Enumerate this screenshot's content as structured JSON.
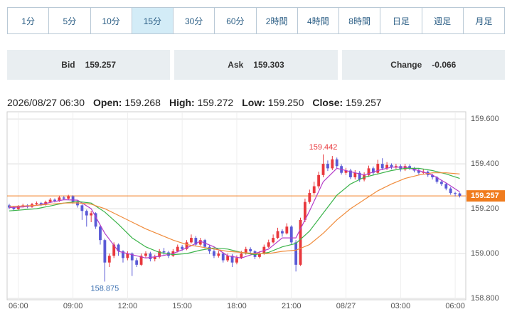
{
  "tabs": {
    "labels": [
      "1分",
      "5分",
      "10分",
      "15分",
      "30分",
      "60分",
      "2時間",
      "4時間",
      "8時間",
      "日足",
      "週足",
      "月足"
    ],
    "active": 3
  },
  "quote": [
    {
      "label": "Bid",
      "value": "159.257"
    },
    {
      "label": "Ask",
      "value": "159.303"
    },
    {
      "label": "Change",
      "value": "-0.066"
    }
  ],
  "ohlc": {
    "time": "2026/08/27 06:30",
    "items": [
      {
        "label": "Open:",
        "value": "159.268"
      },
      {
        "label": "High:",
        "value": "159.272"
      },
      {
        "label": "Low:",
        "value": "159.250"
      },
      {
        "label": "Close:",
        "value": "159.257"
      }
    ]
  },
  "chart_data": {
    "type": "candlestick",
    "up_color": "#e8383d",
    "down_color": "#5a5ad6",
    "last_color": "#f07c1e",
    "grid": true,
    "xlim": [
      -0.47,
      100.33
    ],
    "xticks": [
      {
        "value": 2,
        "label": "06:00"
      },
      {
        "value": 14,
        "label": "09:00"
      },
      {
        "value": 26,
        "label": "12:00"
      },
      {
        "value": 38,
        "label": "15:00"
      },
      {
        "value": 50,
        "label": "18:00"
      },
      {
        "value": 62,
        "label": "21:00"
      },
      {
        "value": 74,
        "label": "08/27"
      },
      {
        "value": 86,
        "label": "03:00"
      },
      {
        "value": 98,
        "label": "06:00"
      }
    ],
    "ylim": [
      158.794,
      159.632
    ],
    "yticks": [
      {
        "value": 158.8,
        "label": "158.800"
      },
      {
        "value": 159.0,
        "label": "159.000"
      },
      {
        "value": 159.2,
        "label": "159.200"
      },
      {
        "value": 159.4,
        "label": "159.400"
      },
      {
        "value": 159.6,
        "label": "159.600"
      }
    ],
    "open": [
      159.215,
      159.205,
      159.198,
      159.21,
      159.215,
      159.208,
      159.22,
      159.225,
      159.218,
      159.23,
      159.24,
      159.235,
      159.25,
      159.245,
      159.255,
      159.23,
      159.215,
      159.19,
      159.17,
      159.18,
      159.12,
      159.06,
      158.96,
      158.99,
      159.04,
      159.01,
      158.98,
      159.0,
      158.97,
      158.95,
      158.99,
      159.0,
      158.975,
      158.985,
      159.01,
      159.005,
      158.99,
      159.01,
      159.03,
      159.02,
      159.05,
      159.07,
      159.04,
      159.06,
      159.03,
      159.01,
      158.99,
      159.0,
      158.97,
      158.99,
      158.96,
      158.98,
      159.0,
      159.02,
      159.01,
      158.985,
      159.0,
      159.03,
      159.05,
      159.07,
      159.1,
      159.09,
      159.12,
      159.05,
      158.95,
      159.15,
      159.23,
      159.27,
      159.3,
      159.35,
      159.4,
      159.38,
      159.42,
      159.39,
      159.36,
      159.37,
      159.34,
      159.36,
      159.33,
      159.35,
      159.38,
      159.36,
      159.4,
      159.38,
      159.395,
      159.385,
      159.39,
      159.375,
      159.39,
      159.38,
      159.37,
      159.36,
      159.365,
      159.35,
      159.34,
      159.32,
      159.31,
      159.29,
      159.27,
      159.268
    ],
    "high": [
      159.222,
      159.212,
      159.216,
      159.222,
      159.22,
      159.226,
      159.232,
      159.23,
      159.236,
      159.248,
      159.246,
      159.258,
      159.256,
      159.262,
      159.26,
      159.236,
      159.22,
      159.196,
      159.19,
      159.184,
      159.126,
      159.066,
      159.0,
      159.05,
      159.045,
      159.015,
      159.01,
      159.005,
      158.98,
      159.0,
      159.01,
      159.008,
      158.995,
      159.02,
      159.025,
      159.012,
      159.02,
      159.04,
      159.038,
      159.06,
      159.085,
      159.078,
      159.07,
      159.065,
      159.038,
      159.018,
      159.012,
      159.006,
      159.0,
      158.998,
      158.992,
      159.012,
      159.03,
      159.028,
      159.015,
      159.01,
      159.04,
      159.062,
      159.085,
      159.115,
      159.108,
      159.135,
      159.126,
      159.06,
      159.16,
      159.245,
      159.285,
      159.32,
      159.365,
      159.442,
      159.415,
      159.435,
      159.428,
      159.398,
      159.382,
      159.378,
      159.372,
      159.368,
      159.362,
      159.392,
      159.388,
      159.418,
      159.425,
      159.408,
      159.402,
      159.4,
      159.398,
      159.4,
      159.398,
      159.386,
      159.378,
      159.375,
      159.37,
      159.356,
      159.346,
      159.328,
      159.315,
      159.296,
      159.275,
      159.272
    ],
    "low": [
      159.198,
      159.19,
      159.192,
      159.205,
      159.202,
      159.204,
      159.215,
      159.212,
      159.214,
      159.226,
      159.228,
      159.23,
      159.238,
      159.24,
      159.222,
      159.205,
      159.15,
      159.12,
      159.14,
      159.11,
      159.04,
      158.875,
      158.94,
      158.98,
      158.99,
      158.96,
      158.97,
      158.9,
      158.94,
      158.945,
      158.98,
      158.965,
      158.965,
      158.978,
      158.995,
      158.98,
      158.985,
      159.005,
      159.012,
      159.015,
      159.045,
      159.032,
      159.035,
      159.022,
      158.998,
      158.98,
      158.982,
      158.96,
      158.962,
      158.94,
      158.952,
      158.975,
      158.995,
      159.002,
      158.975,
      158.978,
      158.995,
      159.025,
      159.045,
      159.065,
      159.075,
      159.085,
      159.04,
      158.92,
      158.945,
      159.14,
      159.222,
      159.262,
      159.29,
      159.34,
      159.368,
      159.372,
      159.38,
      159.352,
      159.35,
      159.332,
      159.33,
      159.32,
      159.322,
      159.342,
      159.35,
      159.352,
      159.372,
      159.372,
      159.376,
      159.378,
      159.366,
      159.368,
      159.372,
      159.362,
      159.352,
      159.355,
      159.342,
      159.33,
      159.312,
      159.302,
      159.282,
      159.262,
      159.255,
      159.25
    ],
    "close": [
      159.205,
      159.198,
      159.21,
      159.215,
      159.208,
      159.22,
      159.225,
      159.218,
      159.23,
      159.24,
      159.235,
      159.25,
      159.245,
      159.255,
      159.23,
      159.215,
      159.19,
      159.17,
      159.18,
      159.12,
      159.06,
      158.96,
      158.99,
      159.04,
      159.01,
      158.98,
      159.0,
      158.97,
      158.95,
      158.99,
      159.0,
      158.975,
      158.985,
      159.01,
      159.005,
      158.99,
      159.01,
      159.03,
      159.02,
      159.05,
      159.07,
      159.04,
      159.06,
      159.03,
      159.01,
      158.99,
      159.0,
      158.97,
      158.99,
      158.96,
      158.98,
      159.0,
      159.02,
      159.01,
      158.985,
      159.0,
      159.03,
      159.05,
      159.07,
      159.1,
      159.09,
      159.12,
      159.05,
      158.95,
      159.15,
      159.23,
      159.27,
      159.3,
      159.35,
      159.4,
      159.38,
      159.42,
      159.39,
      159.36,
      159.37,
      159.34,
      159.36,
      159.33,
      159.35,
      159.38,
      159.36,
      159.4,
      159.38,
      159.395,
      159.385,
      159.39,
      159.375,
      159.39,
      159.38,
      159.37,
      159.36,
      159.365,
      159.35,
      159.34,
      159.32,
      159.31,
      159.29,
      159.27,
      159.268,
      159.257
    ],
    "lines": [
      {
        "color": "#b43cc8",
        "x": [
          0,
          3,
          6,
          9,
          12,
          15,
          18,
          21,
          24,
          27,
          30,
          33,
          36,
          39,
          42,
          45,
          48,
          51,
          54,
          57,
          60,
          63,
          66,
          69,
          72,
          75,
          78,
          81,
          84,
          87,
          90,
          93,
          96,
          99
        ],
        "values": [
          159.205,
          159.208,
          159.215,
          159.228,
          159.24,
          159.238,
          159.2,
          159.09,
          159.01,
          158.995,
          158.98,
          158.988,
          159.0,
          159.025,
          159.055,
          159.03,
          158.99,
          158.98,
          159.0,
          159.02,
          159.07,
          159.07,
          159.19,
          159.32,
          159.38,
          159.365,
          159.35,
          159.37,
          159.385,
          159.385,
          159.37,
          159.35,
          159.315,
          159.275
        ]
      },
      {
        "color": "#3cb44b",
        "x": [
          0,
          3,
          6,
          9,
          12,
          15,
          18,
          21,
          24,
          27,
          30,
          33,
          36,
          39,
          42,
          45,
          48,
          51,
          54,
          57,
          60,
          63,
          66,
          69,
          72,
          75,
          78,
          81,
          84,
          87,
          90,
          93,
          96,
          99
        ],
        "values": [
          159.19,
          159.195,
          159.2,
          159.212,
          159.225,
          159.232,
          159.225,
          159.185,
          159.13,
          159.07,
          159.03,
          159.005,
          158.995,
          159.0,
          159.015,
          159.025,
          159.02,
          159.005,
          158.995,
          159.005,
          159.03,
          159.045,
          159.1,
          159.18,
          159.26,
          159.31,
          159.34,
          159.355,
          159.37,
          159.38,
          159.38,
          159.37,
          159.355,
          159.335
        ]
      },
      {
        "color": "#f08c3c",
        "x": [
          0,
          3,
          6,
          9,
          12,
          15,
          18,
          21,
          24,
          27,
          30,
          33,
          36,
          39,
          42,
          45,
          48,
          51,
          54,
          57,
          60,
          63,
          66,
          69,
          72,
          75,
          78,
          81,
          84,
          87,
          90,
          93,
          96,
          99
        ],
        "values": [
          159.21,
          159.212,
          159.215,
          159.22,
          159.225,
          159.226,
          159.22,
          159.2,
          159.17,
          159.14,
          159.11,
          159.085,
          159.06,
          159.04,
          159.03,
          159.02,
          159.01,
          159.005,
          159.0,
          159.0,
          159.01,
          159.015,
          159.04,
          159.09,
          159.15,
          159.2,
          159.24,
          159.28,
          159.31,
          159.335,
          159.35,
          159.36,
          159.36,
          159.355
        ]
      }
    ]
  }
}
